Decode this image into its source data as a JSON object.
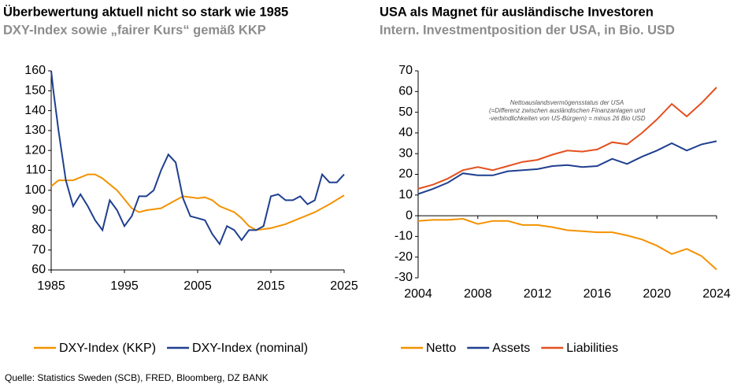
{
  "chart_data": [
    {
      "type": "line",
      "title": "Überbewertung aktuell nicht so stark wie 1985",
      "subtitle": "DXY-Index sowie „fairer Kurs“ gemäß KKP",
      "xlim": [
        1985,
        2025
      ],
      "xticks": [
        1985,
        1995,
        2005,
        2015,
        2025
      ],
      "ylim": [
        60,
        160
      ],
      "yticks": [
        60,
        70,
        80,
        90,
        100,
        110,
        120,
        130,
        140,
        150,
        160
      ],
      "series": [
        {
          "name": "DXY-Index (KKP)",
          "color": "#f39200",
          "x": [
            1985,
            1986,
            1988,
            1990,
            1991,
            1992,
            1994,
            1996,
            1997,
            1998,
            2000,
            2002,
            2003,
            2005,
            2006,
            2007,
            2008,
            2010,
            2011,
            2012,
            2013,
            2015,
            2017,
            2019,
            2021,
            2023,
            2025
          ],
          "values": [
            102,
            105,
            105,
            108,
            108,
            106,
            100,
            91,
            89,
            90,
            91,
            95,
            97,
            96,
            96.5,
            95,
            92,
            89,
            86,
            82,
            80,
            81,
            83,
            86,
            89,
            93,
            97.5
          ]
        },
        {
          "name": "DXY-Index (nominal)",
          "color": "#1f3f8f",
          "x": [
            1985,
            1985.3,
            1986,
            1987,
            1988,
            1989,
            1990,
            1991,
            1992,
            1993,
            1994,
            1995,
            1996,
            1997,
            1998,
            1999,
            2000,
            2001,
            2002,
            2003,
            2004,
            2005,
            2006,
            2007,
            2008,
            2009,
            2010,
            2011,
            2012,
            2013,
            2014,
            2015,
            2016,
            2017,
            2018,
            2019,
            2020,
            2021,
            2022,
            2023,
            2024,
            2025
          ],
          "values": [
            160,
            150,
            130,
            105,
            92,
            98,
            92,
            85,
            80,
            95,
            90,
            82,
            87,
            97,
            97,
            100,
            110,
            118,
            114,
            96,
            87,
            86,
            85,
            78,
            73,
            82,
            80,
            75,
            80,
            80,
            82,
            97,
            98,
            95,
            95,
            97,
            93,
            95,
            108,
            104,
            104,
            108
          ]
        }
      ]
    },
    {
      "type": "line",
      "title": "USA als Magnet für ausländische Investoren",
      "subtitle": "Intern. Investmentposition der USA, in Bio. USD",
      "annotation": [
        "Nettoauslandsvermögensstatus der USA",
        "(=Differenz zwischen ausländischen Finanzanlagen und",
        "-verbindlichkeiten von US-Bürgern) = minus 26 Bio USD"
      ],
      "xlim": [
        2004,
        2024
      ],
      "xticks": [
        2004,
        2008,
        2012,
        2016,
        2020,
        2024
      ],
      "ylim": [
        -30,
        70
      ],
      "yticks": [
        -30,
        -20,
        -10,
        0,
        10,
        20,
        30,
        40,
        50,
        60,
        70
      ],
      "series": [
        {
          "name": "Netto",
          "color": "#f39200",
          "x": [
            2004,
            2005,
            2006,
            2007,
            2008,
            2009,
            2010,
            2011,
            2012,
            2013,
            2014,
            2015,
            2016,
            2017,
            2018,
            2019,
            2020,
            2021,
            2022,
            2023,
            2024
          ],
          "values": [
            -2.5,
            -2,
            -2,
            -1.5,
            -4,
            -2.5,
            -2.5,
            -4.5,
            -4.5,
            -5.5,
            -7,
            -7.5,
            -8,
            -8,
            -9.5,
            -11.5,
            -14.5,
            -18.5,
            -16,
            -19.5,
            -26
          ]
        },
        {
          "name": "Assets",
          "color": "#1f3f8f",
          "x": [
            2004,
            2005,
            2006,
            2007,
            2008,
            2009,
            2010,
            2011,
            2012,
            2013,
            2014,
            2015,
            2016,
            2017,
            2018,
            2019,
            2020,
            2021,
            2022,
            2023,
            2024
          ],
          "values": [
            10.5,
            13,
            16,
            20.5,
            19.5,
            19.5,
            21.5,
            22,
            22.5,
            24,
            24.5,
            23.5,
            24,
            27.5,
            25,
            28.5,
            31.5,
            35,
            31.5,
            34.5,
            36
          ]
        },
        {
          "name": "Liabilities",
          "color": "#e4501e",
          "x": [
            2004,
            2005,
            2006,
            2007,
            2008,
            2009,
            2010,
            2011,
            2012,
            2013,
            2014,
            2015,
            2016,
            2017,
            2018,
            2019,
            2020,
            2021,
            2022,
            2023,
            2024
          ],
          "values": [
            13,
            15,
            18,
            22,
            23.5,
            22,
            24,
            26,
            27,
            29.5,
            31.5,
            31,
            32,
            35.5,
            34.5,
            40,
            46.5,
            54,
            48,
            54.5,
            62
          ]
        }
      ]
    }
  ],
  "source": "Quelle: Statistics Sweden (SCB), FRED, Bloomberg, DZ BANK"
}
